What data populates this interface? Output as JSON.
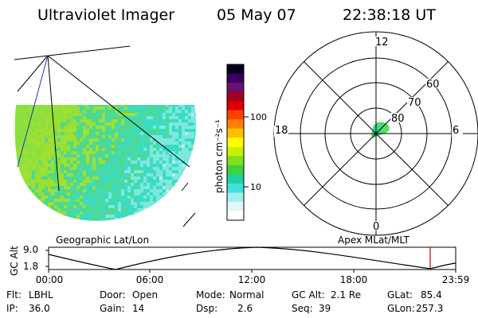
{
  "header": {
    "instrument": "Ultraviolet Imager",
    "date": "05 May 07",
    "time": "22:38:18 UT"
  },
  "left_panel": {
    "caption": "Geographic Lat/Lon",
    "field_colors": [
      "#8be040",
      "#a0e030",
      "#4fd890",
      "#3cdcc0",
      "#7ee8e0",
      "#b4f0ec"
    ]
  },
  "colorbar": {
    "unit_label": "photon cm⁻²s⁻¹",
    "ticks": [
      "100",
      "10"
    ],
    "colors": [
      "#000018",
      "#3a0060",
      "#6a1070",
      "#a00020",
      "#e00000",
      "#ff4000",
      "#ff8000",
      "#ffc000",
      "#ffff00",
      "#c8f000",
      "#80e020",
      "#40d040",
      "#20d0a0",
      "#40e0e0",
      "#a0f0f0",
      "#e0f8f8",
      "#ffffff"
    ]
  },
  "polar_plot": {
    "caption": "Apex MLat/MLT",
    "mlt_labels": {
      "top": "12",
      "right": "6",
      "bottom": "0",
      "left": "18"
    },
    "lat_labels": [
      "60",
      "70",
      "80"
    ],
    "aurora_color": "#56dd66"
  },
  "alt_plot": {
    "ylabel": "GC Alt",
    "yticks": [
      "9.0",
      "1.8"
    ],
    "xticks": [
      "00:00",
      "06:00",
      "12:00",
      "18:00",
      "23:59"
    ],
    "marker_color": "#cc0000"
  },
  "status": {
    "flt_label": "Flt:",
    "flt_value": "LBHL",
    "ip_label": "IP:",
    "ip_value": "36.0",
    "door_label": "Door:",
    "door_value": "Open",
    "gain_label": "Gain:",
    "gain_value": "14",
    "mode_label": "Mode:",
    "mode_value": "Normal",
    "dsp_label": "Dsp:",
    "dsp_value": "2.6",
    "gcalt_label": "GC Alt:",
    "gcalt_value": "2.1 Re",
    "seq_label": "Seq:",
    "seq_value": "39",
    "glat_label": "GLat:",
    "glat_value": "85.4",
    "glon_label": "GLon:",
    "glon_value": "257.3"
  }
}
